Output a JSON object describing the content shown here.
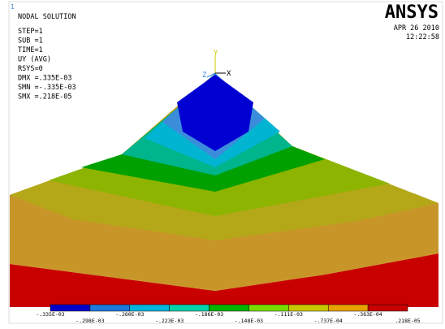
{
  "window_number": "1",
  "info": {
    "title": "NODAL SOLUTION",
    "lines": [
      "STEP=1",
      "SUB =1",
      "TIME=1",
      "UY       (AVG)",
      "RSYS=0",
      "DMX =.335E-03",
      "SMN =-.335E-03",
      "SMX =.218E-05"
    ]
  },
  "brand": {
    "logo": "ANSYS",
    "date": "APR 26 2010",
    "time": "12:22:58"
  },
  "triad": {
    "y": "Y",
    "z": "Z",
    "x": "X"
  },
  "legend": {
    "colors": [
      "#0000c8",
      "#1e78dc",
      "#00b4dc",
      "#00d2aa",
      "#00b400",
      "#78dc00",
      "#c8c800",
      "#e6a000",
      "#c80000"
    ],
    "labels": [
      "-.335E-03",
      "-.298E-03",
      "-.260E-03",
      "-.223E-03",
      "-.186E-03",
      "-.148E-03",
      "-.111E-03",
      "-.737E-04",
      "-.363E-04",
      ".218E-05"
    ]
  }
}
